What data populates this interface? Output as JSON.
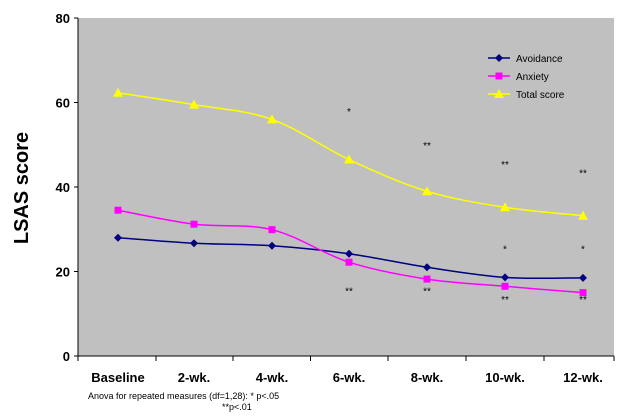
{
  "chart_data": {
    "type": "line",
    "ylabel": "LSAS score",
    "categories": [
      "Baseline",
      "2-wk.",
      "4-wk.",
      "6-wk.",
      "8-wk.",
      "10-wk.",
      "12-wk."
    ],
    "ylim": [
      0,
      80
    ],
    "yticks": [
      0,
      20,
      40,
      60,
      80
    ],
    "grid": false,
    "legend_position": "top-right",
    "plot_background": "#c0c0c0",
    "series": [
      {
        "name": "Avoidance",
        "color": "#000080",
        "marker": "diamond",
        "values": [
          28,
          26.7,
          26.1,
          24.2,
          21,
          18.6,
          18.5
        ]
      },
      {
        "name": "Anxiety",
        "color": "#ff00ff",
        "marker": "square",
        "values": [
          34.5,
          31.2,
          29.9,
          22.2,
          18.2,
          16.5,
          15
        ]
      },
      {
        "name": "Total score",
        "color": "#ffff00",
        "marker": "triangle",
        "values": [
          62.3,
          59.5,
          56,
          46.5,
          39,
          35.2,
          33.2
        ]
      }
    ],
    "annotations": [
      {
        "category": "6-wk.",
        "y": 57,
        "text": "*"
      },
      {
        "category": "8-wk.",
        "y": 49,
        "text": "**"
      },
      {
        "category": "10-wk.",
        "y": 44.5,
        "text": "**"
      },
      {
        "category": "12-wk.",
        "y": 42.5,
        "text": "**"
      },
      {
        "category": "10-wk.",
        "y": 24.5,
        "text": "*"
      },
      {
        "category": "12-wk.",
        "y": 24.5,
        "text": "*"
      },
      {
        "category": "6-wk.",
        "y": 14.5,
        "text": "**"
      },
      {
        "category": "8-wk.",
        "y": 14.5,
        "text": "**"
      },
      {
        "category": "10-wk.",
        "y": 12.5,
        "text": "**"
      },
      {
        "category": "12-wk.",
        "y": 12.5,
        "text": "**"
      }
    ]
  },
  "footnote": {
    "line1": "Anova for repeated measures (df=1,28): * p<.05",
    "line2": "**p<.01"
  }
}
